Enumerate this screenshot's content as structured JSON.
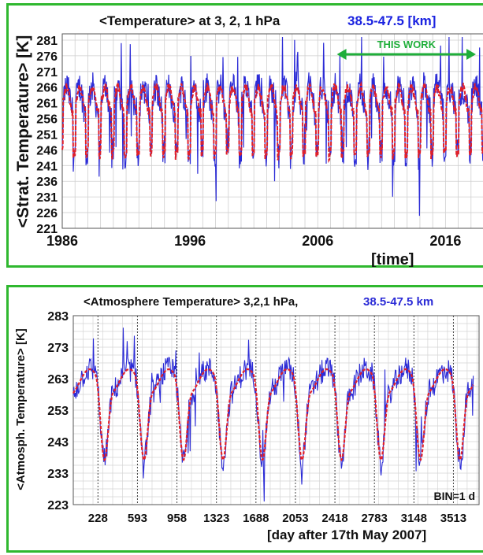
{
  "chart_data": [
    {
      "type": "line",
      "title": "<Temperature> at 3, 2, 1 hPa",
      "title_range": "38.5-47.5 [km]",
      "ylabel": "<Strat. Temperature> [K]",
      "xlabel": "[time]",
      "ylim": [
        221,
        283
      ],
      "xlim": [
        1986,
        2019
      ],
      "yticks": [
        "221",
        "226",
        "231",
        "236",
        "241",
        "246",
        "251",
        "256",
        "261",
        "266",
        "271",
        "276",
        "281"
      ],
      "xticks": [
        "1986",
        "1996",
        "2006",
        "2016"
      ],
      "annotation": "THIS WORK",
      "annotation_span": [
        2007.5,
        2019
      ],
      "grid": true,
      "series": [
        {
          "style": "red dashed, smoothed"
        },
        {
          "style": "blue, daily"
        }
      ],
      "colors": {
        "raw": "#2b2bd6",
        "smooth": "#e0202a",
        "frame": "#2fb82f",
        "annot": "#1fae3a",
        "title_range": "#1a22e0"
      }
    },
    {
      "type": "line",
      "title": "<Atmosphere Temperature> 3,2,1 hPa,",
      "title_range": "38.5-47.5 km",
      "ylabel": "<Atmosph. Temperature> [K]",
      "xlabel": "[day after 17th May 2007]",
      "ylim": [
        223,
        283
      ],
      "xlim": [
        0,
        3750
      ],
      "yticks": [
        "223",
        "233",
        "243",
        "253",
        "263",
        "273",
        "283"
      ],
      "xticks": [
        "228",
        "593",
        "958",
        "1323",
        "1688",
        "2053",
        "2418",
        "2783",
        "3148",
        "3513"
      ],
      "annotation": "BIN=1 d",
      "grid": true,
      "colors": {
        "raw": "#2b2bd6",
        "smooth": "#e0202a"
      }
    }
  ]
}
